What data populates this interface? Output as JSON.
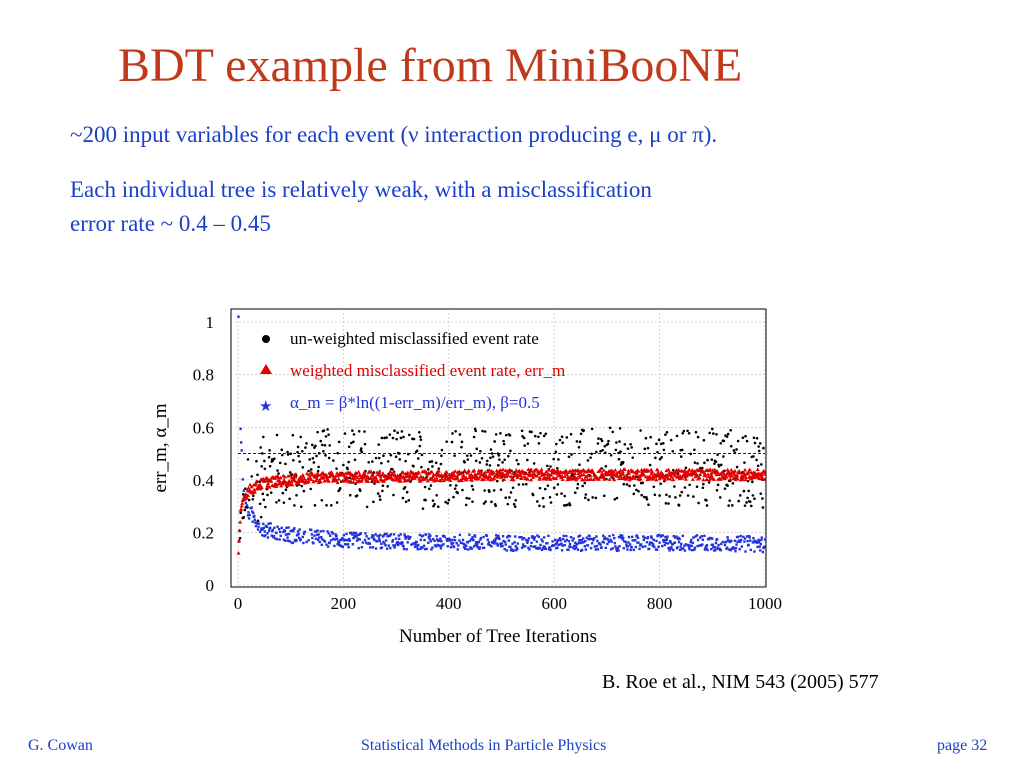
{
  "slide": {
    "title": "BDT example from MiniBooNE",
    "bullet1": "~200 input variables for each event (ν interaction producing e, μ or π).",
    "bullet2_line1": "Each individual tree is relatively weak, with a misclassification",
    "bullet2_line2": "error rate ~ 0.4 – 0.45",
    "citation": "B. Roe et al., NIM 543 (2005) 577"
  },
  "footer": {
    "author": "G. Cowan",
    "course": "Statistical Methods in Particle Physics",
    "page": "page 32"
  },
  "chart_data": {
    "type": "scatter",
    "xlabel": "Number of Tree Iterations",
    "ylabel": "err_m, α_m",
    "xlim": [
      0,
      1000
    ],
    "ylim": [
      0,
      1.05
    ],
    "xticks": [
      0,
      200,
      400,
      600,
      800,
      1000
    ],
    "yticks": [
      0,
      0.2,
      0.4,
      0.6,
      0.8,
      1
    ],
    "reference_line_y": 0.5,
    "legend_position": "top-left",
    "series": [
      {
        "name": "un-weighted misclassified event rate",
        "marker": "circle",
        "color": "#000000",
        "x": [
          1,
          5,
          10,
          20,
          50,
          100,
          150,
          200,
          300,
          400,
          500,
          600,
          700,
          800,
          900,
          1000
        ],
        "y": [
          0.12,
          0.25,
          0.3,
          0.34,
          0.42,
          0.44,
          0.44,
          0.45,
          0.44,
          0.44,
          0.45,
          0.44,
          0.45,
          0.44,
          0.45,
          0.44
        ],
        "spread": 0.15
      },
      {
        "name": "weighted misclassified event rate, err_m",
        "marker": "triangle",
        "color": "#e00000",
        "x": [
          1,
          5,
          10,
          20,
          50,
          100,
          150,
          200,
          300,
          400,
          500,
          600,
          700,
          800,
          900,
          1000
        ],
        "y": [
          0.12,
          0.28,
          0.33,
          0.36,
          0.39,
          0.4,
          0.41,
          0.41,
          0.415,
          0.415,
          0.42,
          0.42,
          0.42,
          0.42,
          0.42,
          0.42
        ],
        "spread": 0.02
      },
      {
        "name": "α_m = β*ln((1-err_m)/err_m), β=0.5",
        "marker": "star",
        "color": "#2233dd",
        "x": [
          1,
          5,
          10,
          20,
          50,
          100,
          150,
          200,
          300,
          400,
          500,
          600,
          700,
          800,
          900,
          1000
        ],
        "y": [
          1.02,
          0.6,
          0.36,
          0.28,
          0.21,
          0.19,
          0.18,
          0.17,
          0.165,
          0.165,
          0.16,
          0.16,
          0.16,
          0.16,
          0.16,
          0.155
        ],
        "spread": 0.03
      }
    ]
  }
}
